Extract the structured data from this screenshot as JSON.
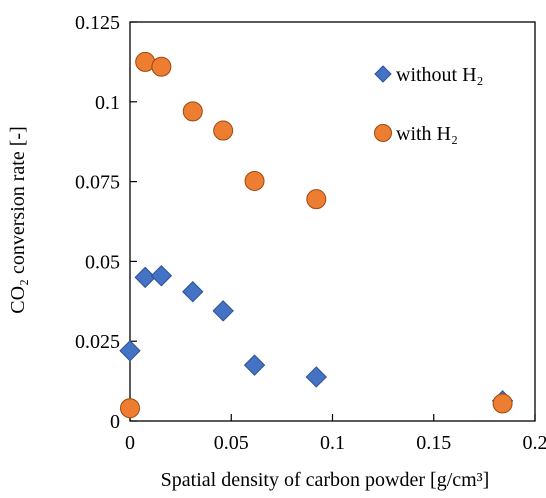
{
  "chart_data": {
    "type": "scatter",
    "title": "",
    "xlabel": "Spatial density of carbon powder [g/cm³]",
    "ylabel": "CO₂ conversion rate [-]",
    "xlim": [
      0,
      0.2
    ],
    "ylim": [
      0,
      0.125
    ],
    "xticks": [
      "0",
      "0.05",
      "0.1",
      "0.15",
      "0.2"
    ],
    "yticks": [
      "0",
      "0.025",
      "0.05",
      "0.075",
      "0.1",
      "0.125"
    ],
    "grid": false,
    "legend_position": "top-right",
    "series": [
      {
        "name": "without H₂",
        "marker": "diamond",
        "color": "#4472C4",
        "points": [
          {
            "x": 0.0,
            "y": 0.022
          },
          {
            "x": 0.0075,
            "y": 0.045
          },
          {
            "x": 0.0155,
            "y": 0.0455
          },
          {
            "x": 0.031,
            "y": 0.0405
          },
          {
            "x": 0.046,
            "y": 0.0345
          },
          {
            "x": 0.0615,
            "y": 0.0175
          },
          {
            "x": 0.092,
            "y": 0.0138
          },
          {
            "x": 0.184,
            "y": 0.0063
          }
        ]
      },
      {
        "name": "with H₂",
        "marker": "circle",
        "color": "#ED7D31",
        "points": [
          {
            "x": 0.0,
            "y": 0.004
          },
          {
            "x": 0.0075,
            "y": 0.1125
          },
          {
            "x": 0.0155,
            "y": 0.111
          },
          {
            "x": 0.031,
            "y": 0.097
          },
          {
            "x": 0.046,
            "y": 0.091
          },
          {
            "x": 0.0615,
            "y": 0.0752
          },
          {
            "x": 0.092,
            "y": 0.0695
          },
          {
            "x": 0.184,
            "y": 0.0055
          }
        ]
      }
    ]
  }
}
